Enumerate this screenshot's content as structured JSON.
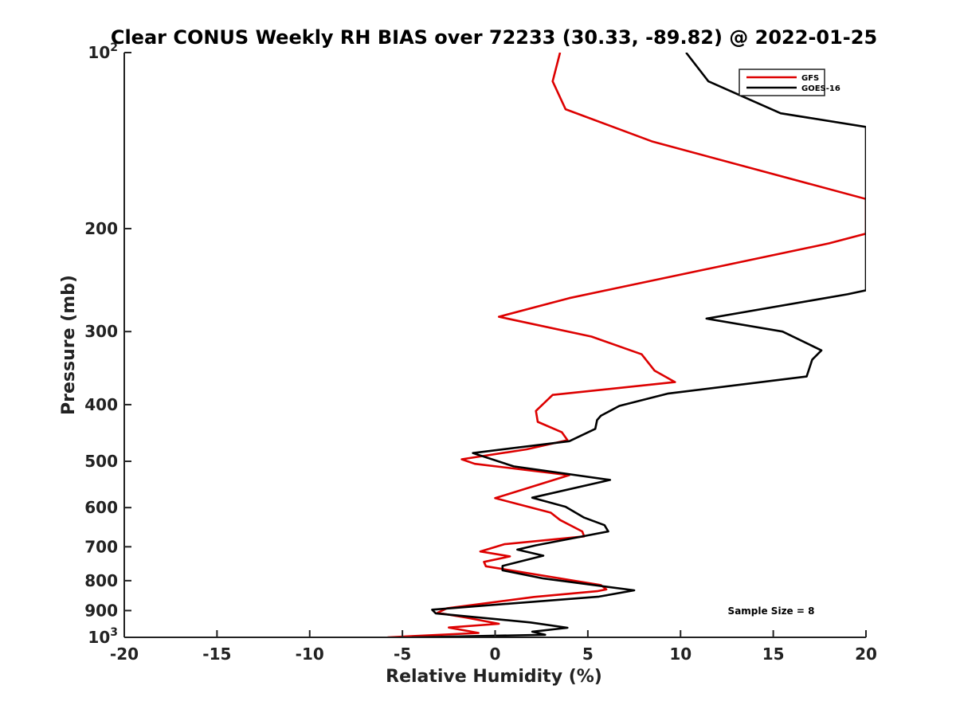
{
  "chart_data": {
    "type": "line",
    "title": "Clear CONUS Weekly RH BIAS over 72233 (30.33, -89.82) @ 2022-01-25",
    "xlabel": "Relative Humidity (%)",
    "ylabel": "Pressure (mb)",
    "xlim": [
      -20,
      20
    ],
    "ylim": [
      100,
      1000
    ],
    "y_scale": "log",
    "y_reversed": true,
    "grid": false,
    "x_ticks": [
      -20,
      -15,
      -10,
      -5,
      0,
      5,
      10,
      15,
      20
    ],
    "x_tick_labels": [
      "-20",
      "-15",
      "-10",
      "-5",
      "0",
      "5",
      "10",
      "15",
      "20"
    ],
    "y_ticks": [
      100,
      200,
      300,
      400,
      500,
      600,
      700,
      800,
      900,
      1000
    ],
    "y_tick_labels": [
      {
        "base": "10",
        "sup": "2"
      },
      {
        "base": "200",
        "sup": ""
      },
      {
        "base": "300",
        "sup": ""
      },
      {
        "base": "400",
        "sup": ""
      },
      {
        "base": "500",
        "sup": ""
      },
      {
        "base": "600",
        "sup": ""
      },
      {
        "base": "700",
        "sup": ""
      },
      {
        "base": "800",
        "sup": ""
      },
      {
        "base": "900",
        "sup": ""
      },
      {
        "base": "10",
        "sup": "3"
      }
    ],
    "legend_position": "top-right",
    "annotation": "Sample Size = 8",
    "series": [
      {
        "name": "GFS",
        "color": "#dd0000",
        "points": [
          [
            3.5,
            100
          ],
          [
            3.1,
            112
          ],
          [
            3.8,
            125
          ],
          [
            8.5,
            142
          ],
          [
            20,
            178
          ],
          [
            20,
            204
          ],
          [
            18,
            212
          ],
          [
            6.5,
            253
          ],
          [
            4.0,
            263
          ],
          [
            0.2,
            283
          ],
          [
            5.2,
            306
          ],
          [
            7.9,
            328
          ],
          [
            8.6,
            350
          ],
          [
            9.7,
            366
          ],
          [
            3.1,
            385
          ],
          [
            2.2,
            410
          ],
          [
            2.3,
            428
          ],
          [
            3.6,
            446
          ],
          [
            3.9,
            460
          ],
          [
            1.7,
            477
          ],
          [
            -1.8,
            496
          ],
          [
            -1.1,
            505
          ],
          [
            4.0,
            528
          ],
          [
            0,
            578
          ],
          [
            3.0,
            612
          ],
          [
            3.5,
            630
          ],
          [
            4.7,
            659
          ],
          [
            4.8,
            672
          ],
          [
            0.5,
            693
          ],
          [
            -0.8,
            713
          ],
          [
            0.8,
            727
          ],
          [
            -0.6,
            743
          ],
          [
            -0.5,
            756
          ],
          [
            5.7,
            814
          ],
          [
            6.0,
            828
          ],
          [
            5.5,
            834
          ],
          [
            2.1,
            853
          ],
          [
            -2.6,
            892
          ],
          [
            -3.1,
            908
          ],
          [
            -1.5,
            926
          ],
          [
            0.2,
            948
          ],
          [
            -2.5,
            962
          ],
          [
            -0.9,
            983
          ],
          [
            -5.8,
            1000
          ]
        ]
      },
      {
        "name": "GOES-16",
        "color": "#000000",
        "points": [
          [
            10.3,
            100
          ],
          [
            11.5,
            112
          ],
          [
            15.4,
            127
          ],
          [
            20,
            134
          ],
          [
            20,
            255
          ],
          [
            19,
            259
          ],
          [
            11.4,
            285
          ],
          [
            15.5,
            300
          ],
          [
            17.6,
            323
          ],
          [
            17.1,
            335
          ],
          [
            16.8,
            358
          ],
          [
            9.3,
            383
          ],
          [
            6.7,
            402
          ],
          [
            5.7,
            418
          ],
          [
            5.5,
            425
          ],
          [
            5.4,
            440
          ],
          [
            4.0,
            462
          ],
          [
            -1.2,
            484
          ],
          [
            1.0,
            510
          ],
          [
            6.2,
            538
          ],
          [
            2.0,
            577
          ],
          [
            3.8,
            598
          ],
          [
            4.8,
            624
          ],
          [
            5.9,
            643
          ],
          [
            6.1,
            659
          ],
          [
            2.2,
            696
          ],
          [
            1.2,
            708
          ],
          [
            2.6,
            725
          ],
          [
            0.4,
            755
          ],
          [
            0.4,
            768
          ],
          [
            2.6,
            793
          ],
          [
            7.5,
            831
          ],
          [
            5.6,
            852
          ],
          [
            -3.4,
            897
          ],
          [
            -3.2,
            910
          ],
          [
            1.9,
            943
          ],
          [
            3.9,
            963
          ],
          [
            2.0,
            978
          ],
          [
            2.7,
            990
          ],
          [
            -4.5,
            1000
          ]
        ]
      }
    ]
  }
}
